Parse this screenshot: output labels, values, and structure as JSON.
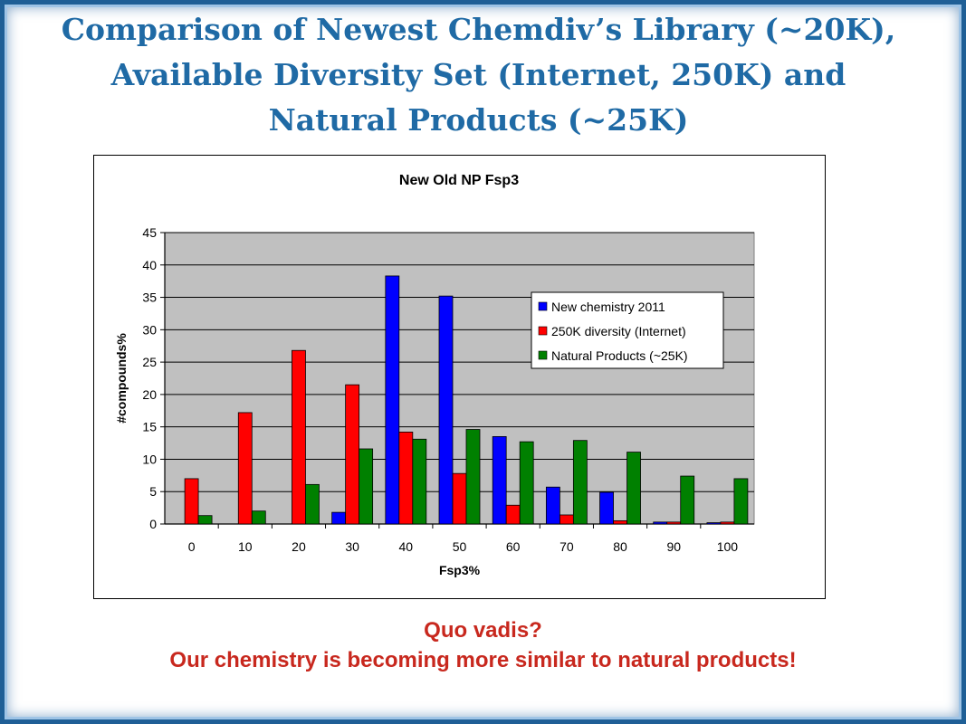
{
  "slide": {
    "title_lines": [
      "Comparison of Newest Chemdiv’s Library (~20K),",
      "Available Diversity Set (Internet, 250K) and",
      "Natural Products (~25K)"
    ],
    "footer_line1": "Quo vadis?",
    "footer_line2": "Our chemistry is becoming more similar to natural products!"
  },
  "chart_data": {
    "type": "bar",
    "title": "New Old NP Fsp3",
    "xlabel": "Fsp3%",
    "ylabel": "#compounds%",
    "ylim": [
      0,
      45
    ],
    "yticks": [
      0,
      5,
      10,
      15,
      20,
      25,
      30,
      35,
      40,
      45
    ],
    "categories": [
      "0",
      "10",
      "20",
      "30",
      "40",
      "50",
      "60",
      "70",
      "80",
      "90",
      "100"
    ],
    "grid": true,
    "legend_position": "right",
    "series": [
      {
        "name": "New chemistry 2011",
        "color": "#0000ff",
        "values": [
          0,
          0,
          0,
          1.8,
          38.3,
          35.2,
          13.5,
          5.7,
          4.9,
          0.3,
          0.2
        ]
      },
      {
        "name": "250K diversity (Internet)",
        "color": "#ff0000",
        "values": [
          7.0,
          17.2,
          26.8,
          21.5,
          14.2,
          7.8,
          2.9,
          1.4,
          0.5,
          0.3,
          0.3
        ]
      },
      {
        "name": "Natural Products (~25K)",
        "color": "#008000",
        "values": [
          1.3,
          2.0,
          6.1,
          11.6,
          13.1,
          14.6,
          12.7,
          12.9,
          11.1,
          7.4,
          7.0
        ]
      }
    ],
    "plot_background": "#c0c0c0"
  }
}
